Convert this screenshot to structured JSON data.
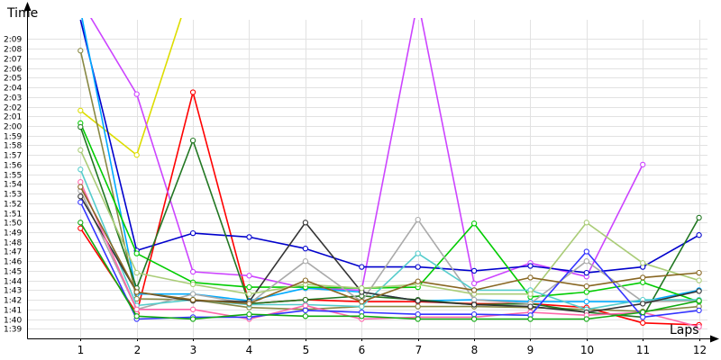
{
  "chart_data": {
    "type": "line",
    "xlabel": "Laps",
    "ylabel": "Time",
    "x": [
      1,
      2,
      3,
      4,
      5,
      6,
      7,
      8,
      9,
      10,
      11,
      12
    ],
    "xlim": [
      0.05,
      12.15
    ],
    "ylim": [
      "1:38",
      "2:11"
    ],
    "y_ticks": [
      "1:39",
      "1:40",
      "1:41",
      "1:42",
      "1:43",
      "1:44",
      "1:45",
      "1:46",
      "1:47",
      "1:48",
      "1:49",
      "1:50",
      "1:51",
      "1:52",
      "1:53",
      "1:54",
      "1:55",
      "1:56",
      "1:57",
      "1:58",
      "1:59",
      "2:00",
      "2:01",
      "2:02",
      "2:03",
      "2:04",
      "2:05",
      "2:06",
      "2:07",
      "2:08",
      "2:09"
    ],
    "grid": true,
    "legend": false,
    "series": [
      {
        "color": "#ff0000",
        "values": [
          "1:49.4",
          "1:40.6",
          "2:03.5",
          "1:41.6",
          "1:42.0",
          "1:41.8",
          "1:41.8",
          "1:41.6",
          "1:41.6",
          "1:41.2",
          "1:39.6",
          "1:39.4"
        ]
      },
      {
        "color": "#dddd00",
        "values": [
          "2:01.6",
          "1:57.0",
          "2:15.0",
          null,
          null,
          null,
          null,
          null,
          null,
          null,
          null,
          null
        ]
      },
      {
        "color": "#cc44ff",
        "values": [
          "2:13.0",
          "2:03.3",
          "1:44.9",
          "1:44.5",
          "1:43.2",
          "1:43.0",
          "2:13.0",
          "1:43.7",
          "1:45.8",
          "1:44.4",
          "1:56.0",
          null
        ]
      },
      {
        "color": "#0000cc",
        "values": [
          "2:11.0",
          "1:47.1",
          "1:48.9",
          "1:48.5",
          "1:47.3",
          "1:45.4",
          "1:45.4",
          "1:45.0",
          "1:45.5",
          "1:44.8",
          "1:45.4",
          "1:48.7"
        ]
      },
      {
        "color": "#00aaff",
        "values": [
          "2:12.0",
          "1:42.6",
          "1:42.6",
          "1:41.9",
          "1:43.2",
          "1:42.8",
          "1:41.9",
          "1:42.0",
          "1:41.8",
          "1:41.8",
          "1:41.8",
          "1:43.0"
        ]
      },
      {
        "color": "#888844",
        "values": [
          "2:07.8",
          "1:42.1",
          "1:42.0",
          "1:41.2",
          "1:41.0",
          "1:41.3",
          "1:41.3",
          "1:41.3",
          "1:41.2",
          "1:41.0",
          "1:40.8",
          "1:41.3"
        ]
      },
      {
        "color": "#00cc00",
        "values": [
          "2:00.3",
          "1:46.8",
          "1:43.8",
          "1:43.3",
          "1:43.3",
          "1:43.2",
          "1:43.3",
          "1:49.9",
          "1:42.3",
          "1:42.8",
          "1:43.8",
          "1:41.8"
        ]
      },
      {
        "color": "#227722",
        "values": [
          "1:59.9",
          "1:43.2",
          "1:58.5",
          "1:41.6",
          "1:42.0",
          "1:42.4",
          "1:42.0",
          "1:41.5",
          "1:41.6",
          "1:40.7",
          "1:40.2",
          "1:50.5"
        ]
      },
      {
        "color": "#aaaaaa",
        "values": [
          "1:53.3",
          "1:41.0",
          "1:42.6",
          "1:41.6",
          "1:46.0",
          "1:41.8",
          "1:50.3",
          "1:42.0",
          "1:41.6",
          "1:46.0",
          "1:41.8",
          "1:41.9"
        ]
      },
      {
        "color": "#55cccc",
        "values": [
          "1:55.5",
          "1:41.4",
          "1:42.0",
          "1:41.5",
          "1:41.5",
          "1:41.3",
          "1:46.8",
          "1:43.0",
          "1:43.0",
          "1:41.0",
          "1:42.0",
          "1:42.0"
        ]
      },
      {
        "color": "#333333",
        "values": [
          "1:52.7",
          "1:42.8",
          "1:41.9",
          "1:41.8",
          "1:50.0",
          "1:42.8",
          "1:41.9",
          "1:41.5",
          "1:41.3",
          "1:40.7",
          "1:41.6",
          "1:42.9"
        ]
      },
      {
        "color": "#aacc77",
        "values": [
          "1:57.5",
          "1:44.8",
          "1:43.6",
          "1:42.6",
          "1:43.6",
          "1:43.2",
          "1:43.6",
          "1:42.6",
          "1:42.6",
          "1:50.0",
          "1:45.8",
          "1:44.0"
        ]
      },
      {
        "color": "#ff66aa",
        "values": [
          "1:54.2",
          "1:41.0",
          "1:41.0",
          "1:40.0",
          "1:41.4",
          "1:40.0",
          "1:40.2",
          "1:40.2",
          "1:40.7",
          "1:40.4",
          "1:40.7",
          "1:39.2"
        ]
      },
      {
        "color": "#3333ff",
        "values": [
          "1:52.1",
          "1:40.0",
          "1:40.2",
          "1:40.2",
          "1:40.9",
          "1:40.7",
          "1:40.5",
          "1:40.5",
          "1:40.4",
          "1:47.0",
          "1:40.2",
          "1:40.9"
        ]
      },
      {
        "color": "#11aa11",
        "values": [
          "1:50.0",
          "1:40.3",
          "1:40.0",
          "1:40.5",
          "1:40.3",
          "1:40.3",
          "1:40.0",
          "1:40.0",
          "1:40.0",
          "1:40.0",
          "1:40.7",
          "1:41.9"
        ]
      },
      {
        "color": "#886622",
        "values": [
          "1:53.7",
          "1:42.8",
          "1:42.0",
          "1:41.6",
          "1:44.0",
          "1:41.8",
          "1:43.9",
          "1:43.0",
          "1:44.3",
          "1:43.4",
          "1:44.3",
          "1:44.8"
        ]
      }
    ]
  }
}
